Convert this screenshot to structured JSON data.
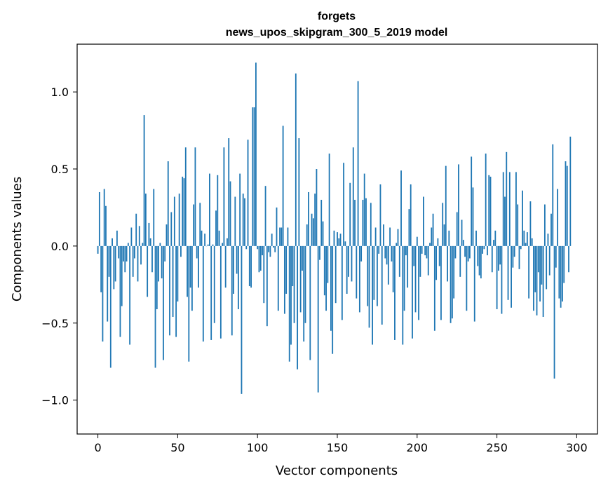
{
  "chart_data": {
    "type": "bar",
    "title": "forgets",
    "subtitle": "news_upos_skipgram_300_5_2019 model",
    "xlabel": "Vector components",
    "ylabel": "Components values",
    "xlim": [
      -13,
      313
    ],
    "ylim": [
      -1.22,
      1.31
    ],
    "xticks": [
      0,
      50,
      100,
      150,
      200,
      250,
      300
    ],
    "yticks": [
      1.0,
      0.5,
      0.0,
      -0.5,
      -1.0
    ],
    "xtick_labels": [
      "0",
      "50",
      "100",
      "150",
      "200",
      "250",
      "300"
    ],
    "ytick_labels": [
      "1.0",
      "0.5",
      "0.0",
      "−0.5",
      "−1.0"
    ],
    "bar_color": "#1f77b4",
    "grid": false,
    "values": [
      -0.05,
      0.35,
      -0.3,
      -0.62,
      0.37,
      0.26,
      -0.49,
      -0.2,
      -0.79,
      0.05,
      -0.28,
      -0.23,
      0.1,
      -0.08,
      -0.59,
      -0.39,
      -0.1,
      -0.17,
      -0.1,
      0.02,
      -0.64,
      0.12,
      -0.2,
      -0.08,
      0.21,
      -0.23,
      0.13,
      -0.12,
      0.02,
      0.85,
      0.34,
      -0.33,
      0.15,
      0.05,
      -0.17,
      0.37,
      -0.79,
      -0.41,
      -0.23,
      0.02,
      -0.21,
      -0.74,
      -0.1,
      0.14,
      0.55,
      -0.58,
      0.22,
      -0.46,
      0.32,
      -0.59,
      -0.36,
      0.34,
      -0.07,
      0.45,
      0.44,
      0.64,
      -0.33,
      -0.75,
      -0.27,
      -0.42,
      0.27,
      0.64,
      -0.08,
      -0.27,
      0.28,
      0.1,
      -0.62,
      0.08,
      0.0,
      0.01,
      0.47,
      -0.61,
      0.01,
      -0.5,
      0.23,
      0.46,
      0.1,
      -0.6,
      0.02,
      0.64,
      -0.27,
      0.05,
      0.7,
      0.42,
      -0.58,
      -0.31,
      0.32,
      -0.18,
      -0.41,
      0.47,
      -0.96,
      0.34,
      0.31,
      -0.02,
      0.69,
      -0.26,
      -0.27,
      0.9,
      0.9,
      1.19,
      -0.02,
      -0.17,
      -0.16,
      -0.06,
      -0.37,
      0.39,
      -0.52,
      -0.04,
      -0.07,
      0.08,
      -0.01,
      -0.04,
      0.25,
      -0.42,
      0.12,
      0.12,
      0.78,
      -0.44,
      -0.31,
      0.12,
      -0.75,
      -0.64,
      -0.26,
      -0.5,
      1.12,
      -0.8,
      0.7,
      -0.43,
      -0.16,
      -0.62,
      -0.5,
      0.14,
      0.35,
      -0.74,
      0.21,
      0.18,
      0.34,
      0.5,
      -0.95,
      -0.09,
      0.3,
      0.16,
      -0.32,
      -0.42,
      -0.24,
      0.6,
      -0.55,
      -0.7,
      0.1,
      -0.37,
      0.09,
      0.05,
      0.08,
      -0.48,
      0.54,
      0.03,
      -0.31,
      -0.2,
      0.41,
      -0.23,
      0.64,
      0.3,
      -0.34,
      1.07,
      -0.43,
      -0.1,
      0.3,
      0.47,
      0.31,
      -0.39,
      -0.53,
      0.28,
      -0.64,
      -0.35,
      0.12,
      -0.39,
      -0.05,
      0.4,
      -0.51,
      0.14,
      -0.08,
      -0.12,
      -0.25,
      0.12,
      -0.1,
      -0.3,
      -0.61,
      0.02,
      0.11,
      -0.2,
      0.49,
      -0.64,
      -0.42,
      -0.06,
      -0.27,
      0.24,
      0.4,
      -0.6,
      -0.13,
      -0.43,
      0.06,
      -0.48,
      -0.2,
      -0.05,
      0.32,
      -0.06,
      -0.08,
      -0.19,
      0.02,
      0.12,
      0.21,
      -0.55,
      -0.22,
      0.05,
      -0.13,
      -0.48,
      0.28,
      0.14,
      0.52,
      -0.23,
      0.1,
      -0.5,
      -0.47,
      -0.34,
      -0.08,
      0.22,
      0.53,
      -0.2,
      0.17,
      0.04,
      -0.07,
      -0.42,
      -0.1,
      -0.08,
      0.58,
      0.38,
      -0.49,
      0.1,
      -0.13,
      -0.19,
      -0.21,
      -0.05,
      -0.02,
      0.6,
      -0.06,
      0.46,
      0.45,
      -0.17,
      0.04,
      0.1,
      -0.41,
      -0.16,
      -0.12,
      -0.44,
      0.48,
      0.32,
      0.61,
      -0.35,
      0.48,
      -0.4,
      -0.14,
      -0.07,
      0.48,
      0.27,
      -0.15,
      -0.02,
      0.36,
      0.1,
      0.02,
      0.09,
      -0.34,
      0.29,
      0.05,
      -0.42,
      -0.3,
      -0.45,
      -0.17,
      -0.36,
      -0.25,
      -0.46,
      0.27,
      -0.28,
      0.08,
      -0.19,
      0.21,
      0.66,
      -0.86,
      -0.14,
      0.37,
      -0.34,
      -0.4,
      -0.36,
      -0.24,
      0.55,
      0.52,
      -0.17,
      0.71
    ]
  }
}
